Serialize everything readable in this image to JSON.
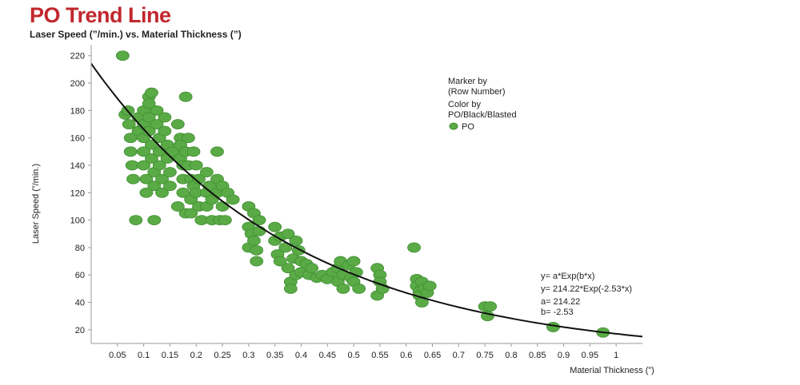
{
  "header": {
    "title": "PO Trend Line",
    "subtitle": "Laser Speed (”/min.) vs. Material Thickness (”)"
  },
  "legend": {
    "marker_by_line1": "Marker by",
    "marker_by_line2": "(Row Number)",
    "color_by_line1": "Color by",
    "color_by_line2": "PO/Black/Blasted",
    "entry_label": "PO"
  },
  "annotation": {
    "line1": "y=  a*Exp(b*x)",
    "line2": "y=  214.22*Exp(-2.53*x)",
    "line3": "a=  214.22",
    "line4": "b=  -2.53"
  },
  "colors": {
    "title": "#c1272d",
    "marker_fill": "#5aab46",
    "marker_stroke": "#3f8c32",
    "trend_line": "#111111",
    "axis": "#9a9a9a"
  },
  "chart_data": {
    "type": "scatter",
    "xlabel": "Material Thickness (”)",
    "ylabel": "Laser Speed (”/min.)",
    "xlim": [
      0.0,
      1.05
    ],
    "ylim": [
      10,
      228
    ],
    "xticks": [
      "0.05",
      "0.1",
      "0.15",
      "0.2",
      "0.25",
      "0.3",
      "0.35",
      "0.4",
      "0.45",
      "0.5",
      "0.55",
      "0.6",
      "0.65",
      "0.7",
      "0.75",
      "0.8",
      "0.85",
      "0.9",
      "0.95",
      "1"
    ],
    "yticks": [
      "20",
      "40",
      "60",
      "80",
      "100",
      "120",
      "140",
      "160",
      "180",
      "200",
      "220"
    ],
    "grid": false,
    "legend_position": "top-right",
    "series": [
      {
        "name": "PO",
        "points": [
          [
            0.06,
            220
          ],
          [
            0.065,
            177
          ],
          [
            0.07,
            180
          ],
          [
            0.072,
            170
          ],
          [
            0.075,
            160
          ],
          [
            0.075,
            150
          ],
          [
            0.078,
            140
          ],
          [
            0.08,
            130
          ],
          [
            0.085,
            100
          ],
          [
            0.09,
            165
          ],
          [
            0.09,
            175
          ],
          [
            0.1,
            180
          ],
          [
            0.1,
            170
          ],
          [
            0.1,
            160
          ],
          [
            0.1,
            150
          ],
          [
            0.1,
            140
          ],
          [
            0.105,
            130
          ],
          [
            0.105,
            120
          ],
          [
            0.11,
            190
          ],
          [
            0.11,
            185
          ],
          [
            0.11,
            175
          ],
          [
            0.11,
            165
          ],
          [
            0.115,
            193
          ],
          [
            0.115,
            155
          ],
          [
            0.115,
            145
          ],
          [
            0.12,
            135
          ],
          [
            0.12,
            125
          ],
          [
            0.12,
            100
          ],
          [
            0.125,
            180
          ],
          [
            0.125,
            170
          ],
          [
            0.13,
            160
          ],
          [
            0.13,
            150
          ],
          [
            0.13,
            140
          ],
          [
            0.135,
            130
          ],
          [
            0.135,
            120
          ],
          [
            0.14,
            175
          ],
          [
            0.14,
            165
          ],
          [
            0.145,
            155
          ],
          [
            0.145,
            145
          ],
          [
            0.15,
            135
          ],
          [
            0.15,
            125
          ],
          [
            0.155,
            150
          ],
          [
            0.165,
            170
          ],
          [
            0.165,
            110
          ],
          [
            0.17,
            160
          ],
          [
            0.17,
            155
          ],
          [
            0.17,
            145
          ],
          [
            0.175,
            140
          ],
          [
            0.175,
            130
          ],
          [
            0.175,
            120
          ],
          [
            0.18,
            190
          ],
          [
            0.18,
            150
          ],
          [
            0.18,
            105
          ],
          [
            0.185,
            160
          ],
          [
            0.185,
            140
          ],
          [
            0.19,
            130
          ],
          [
            0.19,
            115
          ],
          [
            0.19,
            105
          ],
          [
            0.195,
            150
          ],
          [
            0.195,
            125
          ],
          [
            0.2,
            140
          ],
          [
            0.2,
            120
          ],
          [
            0.205,
            130
          ],
          [
            0.205,
            110
          ],
          [
            0.21,
            100
          ],
          [
            0.22,
            135
          ],
          [
            0.22,
            120
          ],
          [
            0.22,
            110
          ],
          [
            0.225,
            125
          ],
          [
            0.23,
            115
          ],
          [
            0.23,
            100
          ],
          [
            0.24,
            150
          ],
          [
            0.24,
            130
          ],
          [
            0.24,
            120
          ],
          [
            0.245,
            100
          ],
          [
            0.25,
            125
          ],
          [
            0.25,
            110
          ],
          [
            0.255,
            100
          ],
          [
            0.26,
            120
          ],
          [
            0.27,
            115
          ],
          [
            0.3,
            110
          ],
          [
            0.3,
            95
          ],
          [
            0.3,
            80
          ],
          [
            0.305,
            90
          ],
          [
            0.31,
            105
          ],
          [
            0.31,
            85
          ],
          [
            0.315,
            78
          ],
          [
            0.315,
            70
          ],
          [
            0.32,
            100
          ],
          [
            0.32,
            92
          ],
          [
            0.35,
            95
          ],
          [
            0.35,
            85
          ],
          [
            0.355,
            75
          ],
          [
            0.36,
            88
          ],
          [
            0.36,
            70
          ],
          [
            0.37,
            80
          ],
          [
            0.375,
            90
          ],
          [
            0.375,
            65
          ],
          [
            0.38,
            55
          ],
          [
            0.38,
            50
          ],
          [
            0.385,
            72
          ],
          [
            0.39,
            85
          ],
          [
            0.39,
            60
          ],
          [
            0.395,
            78
          ],
          [
            0.4,
            70
          ],
          [
            0.4,
            62
          ],
          [
            0.41,
            68
          ],
          [
            0.415,
            60
          ],
          [
            0.42,
            65
          ],
          [
            0.43,
            58
          ],
          [
            0.44,
            60
          ],
          [
            0.45,
            57
          ],
          [
            0.46,
            62
          ],
          [
            0.47,
            65
          ],
          [
            0.47,
            55
          ],
          [
            0.475,
            70
          ],
          [
            0.48,
            60
          ],
          [
            0.48,
            50
          ],
          [
            0.49,
            67
          ],
          [
            0.495,
            58
          ],
          [
            0.5,
            70
          ],
          [
            0.5,
            55
          ],
          [
            0.505,
            62
          ],
          [
            0.51,
            50
          ],
          [
            0.545,
            65
          ],
          [
            0.545,
            45
          ],
          [
            0.55,
            60
          ],
          [
            0.55,
            55
          ],
          [
            0.555,
            50
          ],
          [
            0.615,
            80
          ],
          [
            0.62,
            57
          ],
          [
            0.62,
            52
          ],
          [
            0.625,
            48
          ],
          [
            0.625,
            45
          ],
          [
            0.63,
            55
          ],
          [
            0.63,
            40
          ],
          [
            0.635,
            50
          ],
          [
            0.64,
            47
          ],
          [
            0.645,
            52
          ],
          [
            0.75,
            37
          ],
          [
            0.755,
            30
          ],
          [
            0.76,
            37
          ],
          [
            0.88,
            22
          ],
          [
            0.975,
            18
          ]
        ]
      }
    ],
    "trend_line": {
      "model": "y = a*exp(b*x)",
      "a": 214.22,
      "b": -2.53,
      "x_range": [
        0.0,
        1.05
      ]
    }
  }
}
